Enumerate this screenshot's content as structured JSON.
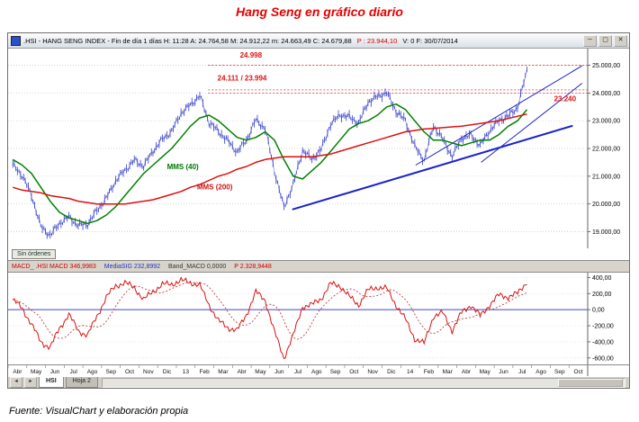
{
  "page": {
    "title": "Hang Seng en gráfico diario",
    "title_color": "#e60000",
    "footer": "Fuente: VisualChart y elaboración propia"
  },
  "window": {
    "titlebar": {
      "parts": [
        {
          "text": ".HSI - HANG SENG INDEX - Fin de día 1 días  H: 11:28  A: 24.764,58  M: 24.912,22  m: 24.663,49  C: 24.679,88",
          "color": "#000000"
        },
        {
          "text": "P : 23.944,10",
          "color": "#cc0000"
        },
        {
          "text": "V: 0  F: 30/07/2014",
          "color": "#000000"
        }
      ],
      "buttons": [
        {
          "name": "minimize",
          "glyph": "─"
        },
        {
          "name": "maximize",
          "glyph": "▢"
        },
        {
          "name": "close",
          "glyph": "✕"
        }
      ]
    },
    "orders_button": "Sin órdenes",
    "macd_header": {
      "parts": [
        {
          "text": "MACD_  .HSI  MACD 346,9983",
          "color": "#cc0000"
        },
        {
          "text": "MediaSIG 232,8992",
          "color": "#2233bb"
        },
        {
          "text": "Band_MACD 0,0000",
          "color": "#333333"
        },
        {
          "text": "P 2.328,9448",
          "color": "#cc0000"
        }
      ]
    },
    "tabs": {
      "nav_prev": "◄",
      "nav_next": "►",
      "items": [
        "HSI",
        "Hoja 2"
      ],
      "active": "HSI"
    }
  },
  "chart_data": [
    {
      "type": "candlestick",
      "title": ".HSI HANG SENG INDEX - daily",
      "x_axis": {
        "months": [
          "Abr",
          "May",
          "Jun",
          "Jul",
          "Ago",
          "Sep",
          "Oct",
          "Nov",
          "Dic",
          "13",
          "Feb",
          "Mar",
          "Abr",
          "May",
          "Jun",
          "Jul",
          "Ago",
          "Sep",
          "Oct",
          "Nov",
          "Dic",
          "14",
          "Feb",
          "Mar",
          "Abr",
          "May",
          "Jun",
          "Jul",
          "Ago",
          "Sep",
          "Oct"
        ],
        "anchors_per_month": 2,
        "data_months": 28
      },
      "y_axis": {
        "min": 18400,
        "max": 25600,
        "ticks": [
          {
            "v": 25000,
            "label": "25.000,00"
          },
          {
            "v": 24000,
            "label": "24.000,00"
          },
          {
            "v": 23000,
            "label": "23.000,00"
          },
          {
            "v": 22000,
            "label": "22.000,00"
          },
          {
            "v": 21000,
            "label": "21.000,00"
          },
          {
            "v": 20000,
            "label": "20.000,00"
          },
          {
            "v": 19000,
            "label": "19.000,00"
          }
        ]
      },
      "series": {
        "close": [
          21400,
          21000,
          20300,
          19200,
          18900,
          19300,
          19500,
          19200,
          19300,
          19800,
          20200,
          20800,
          21200,
          21600,
          21400,
          21900,
          22300,
          22600,
          23300,
          23600,
          23900,
          22900,
          22600,
          22300,
          21900,
          22300,
          23000,
          22700,
          21200,
          19900,
          20700,
          21900,
          21600,
          22000,
          22900,
          23200,
          23100,
          22900,
          23700,
          23900,
          24000,
          23300,
          23000,
          22100,
          21600,
          22800,
          22300,
          21700,
          22400,
          22500,
          22100,
          22600,
          23000,
          23200,
          23500,
          24800
        ],
        "mms40": {
          "name": "MMS (40)",
          "color": "#008000",
          "values": [
            21600,
            21400,
            21100,
            20600,
            20100,
            19700,
            19500,
            19400,
            19300,
            19400,
            19600,
            19900,
            20300,
            20700,
            21100,
            21400,
            21700,
            22000,
            22400,
            22800,
            23100,
            23200,
            23000,
            22700,
            22400,
            22300,
            22400,
            22600,
            22300,
            21600,
            21000,
            20900,
            21200,
            21500,
            21900,
            22300,
            22700,
            22900,
            23000,
            23200,
            23500,
            23600,
            23400,
            23000,
            22600,
            22300,
            22300,
            22200,
            22100,
            22200,
            22300,
            22300,
            22500,
            22800,
            23000,
            23400
          ]
        },
        "mms200": {
          "name": "MMS (200)",
          "color": "#dd1111",
          "values": [
            20600,
            20500,
            20450,
            20400,
            20300,
            20250,
            20200,
            20100,
            20050,
            20000,
            20000,
            20000,
            20000,
            20050,
            20100,
            20150,
            20250,
            20350,
            20450,
            20600,
            20700,
            20850,
            21000,
            21100,
            21250,
            21350,
            21500,
            21600,
            21650,
            21700,
            21700,
            21700,
            21700,
            21750,
            21800,
            21900,
            22000,
            22100,
            22200,
            22300,
            22400,
            22500,
            22600,
            22650,
            22700,
            22720,
            22750,
            22780,
            22800,
            22850,
            22900,
            22950,
            23000,
            23080,
            23160,
            23240
          ]
        }
      },
      "resistance": {
        "levels": [
          24998,
          24111,
          23994
        ],
        "start_month": 10.7,
        "color": "#e03030"
      },
      "trendlines": [
        {
          "from": [
            15.2,
            19800
          ],
          "to": [
            30.2,
            22820
          ],
          "width": 2
        },
        {
          "from": [
            21.8,
            21400
          ],
          "to": [
            30.7,
            24980
          ],
          "width": 1
        },
        {
          "from": [
            25.3,
            21500
          ],
          "to": [
            30.7,
            24350
          ],
          "width": 1
        }
      ],
      "annotations": [
        {
          "text": "24.998",
          "month": 12.4,
          "price": 25280,
          "color": "#dd1111"
        },
        {
          "text": "24.111 / 23.994",
          "month": 11.2,
          "price": 24450,
          "color": "#dd1111"
        },
        {
          "text": "23.240",
          "month": 29.2,
          "price": 23700,
          "color": "#dd1111"
        },
        {
          "text": "MMS (40)",
          "month": 8.5,
          "price": 21250,
          "color": "#007700"
        },
        {
          "text": "MMS (200)",
          "month": 10.1,
          "price": 20520,
          "color": "#cc1111"
        }
      ]
    },
    {
      "type": "line",
      "title": "MACD",
      "y_axis": {
        "min": -680,
        "max": 460,
        "ticks": [
          {
            "v": 400,
            "label": "400,00"
          },
          {
            "v": 200,
            "label": "200,00"
          },
          {
            "v": 0,
            "label": "0,00"
          },
          {
            "v": -200,
            "label": "-200,00"
          },
          {
            "v": -400,
            "label": "-400,00"
          },
          {
            "v": -600,
            "label": "-600,00"
          }
        ]
      },
      "zero_line": {
        "v": 0,
        "color": "#3a46c8"
      },
      "series": [
        {
          "name": "MACD",
          "color": "#dd1111",
          "values": [
            120,
            20,
            -180,
            -400,
            -470,
            -230,
            -60,
            -260,
            -320,
            -80,
            150,
            300,
            330,
            280,
            120,
            230,
            310,
            320,
            360,
            340,
            300,
            60,
            -140,
            -220,
            -260,
            -60,
            220,
            120,
            -280,
            -600,
            -320,
            40,
            60,
            140,
            320,
            300,
            160,
            60,
            240,
            280,
            260,
            60,
            -120,
            -360,
            -420,
            -80,
            -40,
            -260,
            -40,
            60,
            -80,
            60,
            180,
            160,
            200,
            350
          ]
        },
        {
          "name": "MediaSIG",
          "color": "#c04040",
          "style": "dotted",
          "derived": "smoothed(MACD)"
        }
      ]
    }
  ]
}
